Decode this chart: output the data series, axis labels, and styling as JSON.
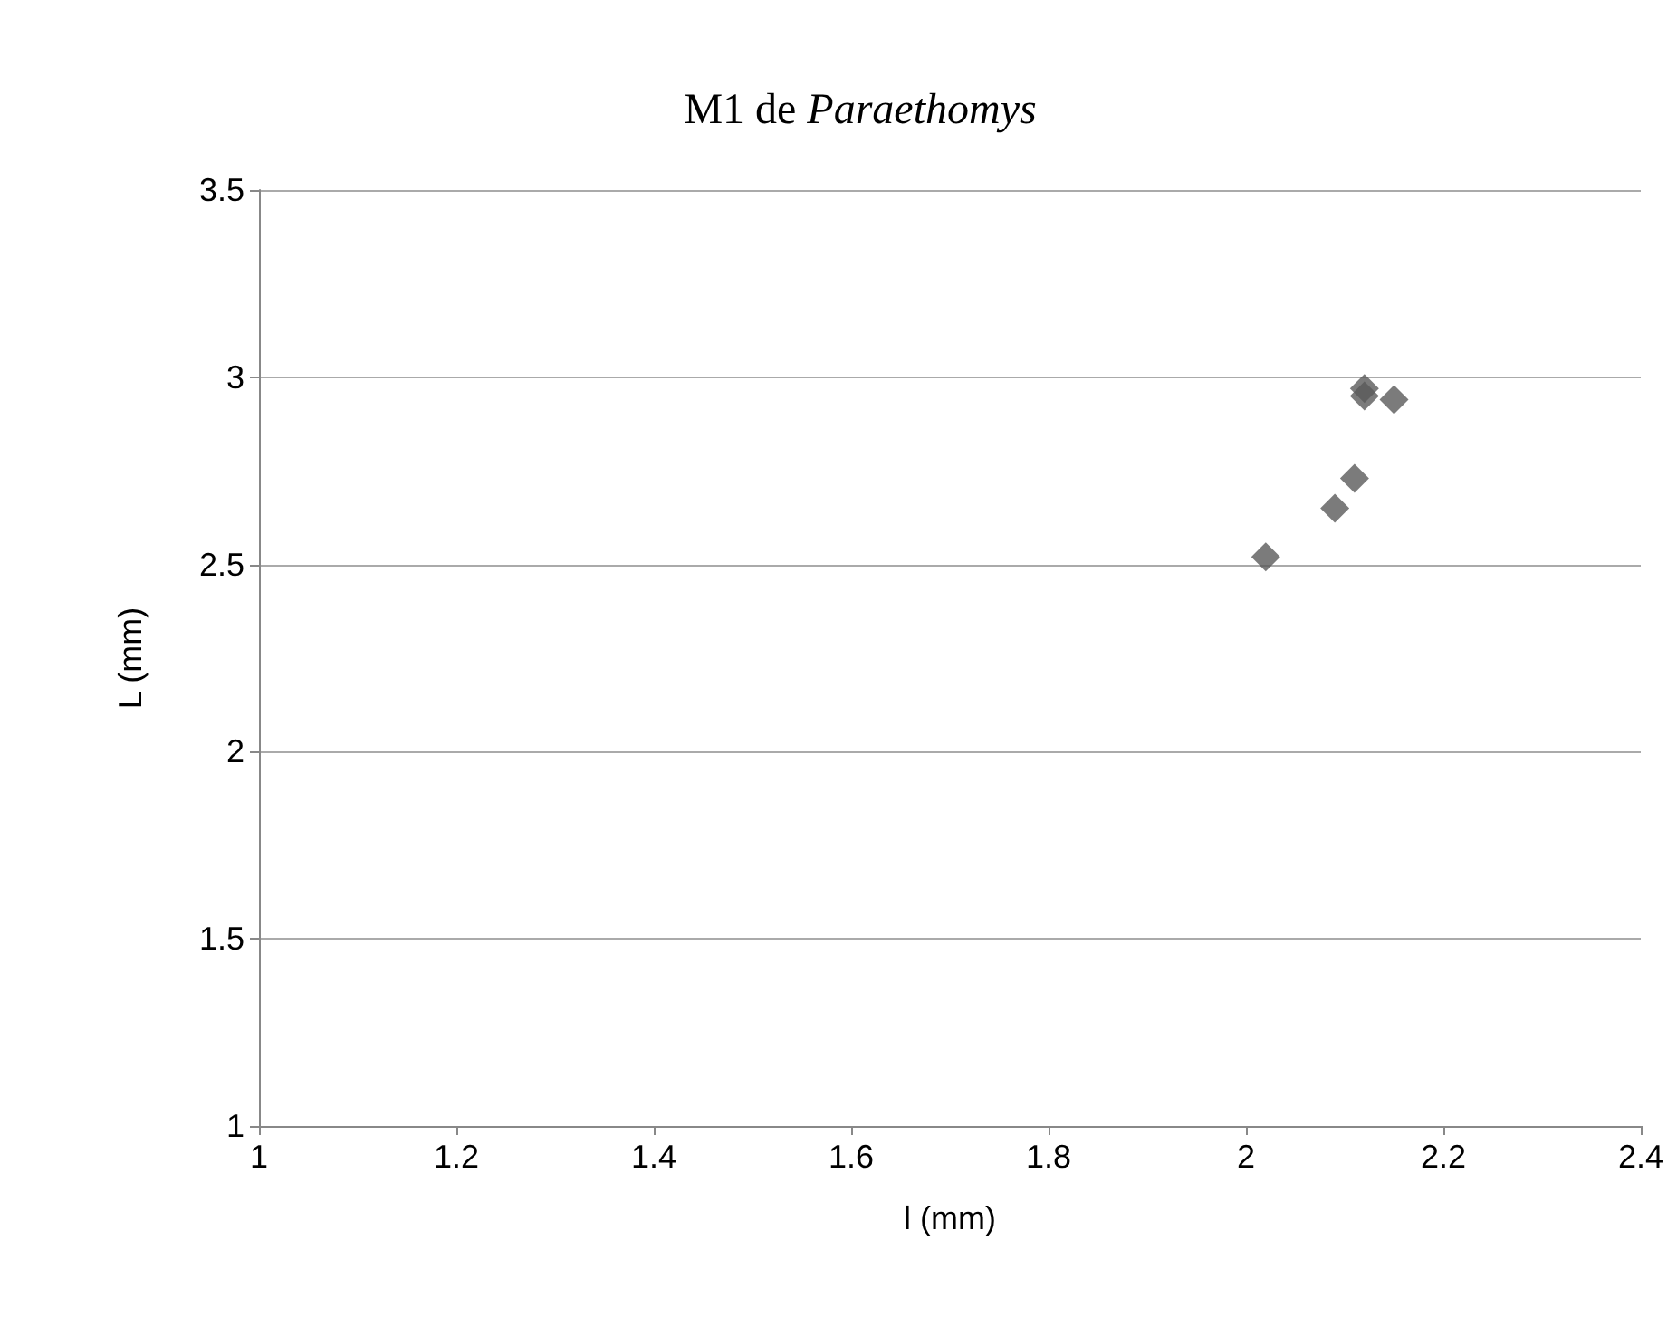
{
  "chart_data": {
    "type": "scatter",
    "title": "M1 de Paraethomys",
    "xlabel": "l (mm)",
    "ylabel": "L (mm)",
    "x": [
      2.02,
      2.09,
      2.11,
      2.12,
      2.12,
      2.15
    ],
    "values": [
      2.52,
      2.65,
      2.73,
      2.97,
      2.95,
      2.94
    ],
    "color": "#5a5a5a",
    "marker": "diamond",
    "xlim": [
      1,
      2.4
    ],
    "xticks": [
      1,
      1.2,
      1.4,
      1.6,
      1.8,
      2,
      2.2,
      2.4
    ],
    "ylim": [
      1,
      3.5
    ],
    "yticks": [
      1,
      1.5,
      2,
      2.5,
      3,
      3.5
    ],
    "grid": "y"
  }
}
